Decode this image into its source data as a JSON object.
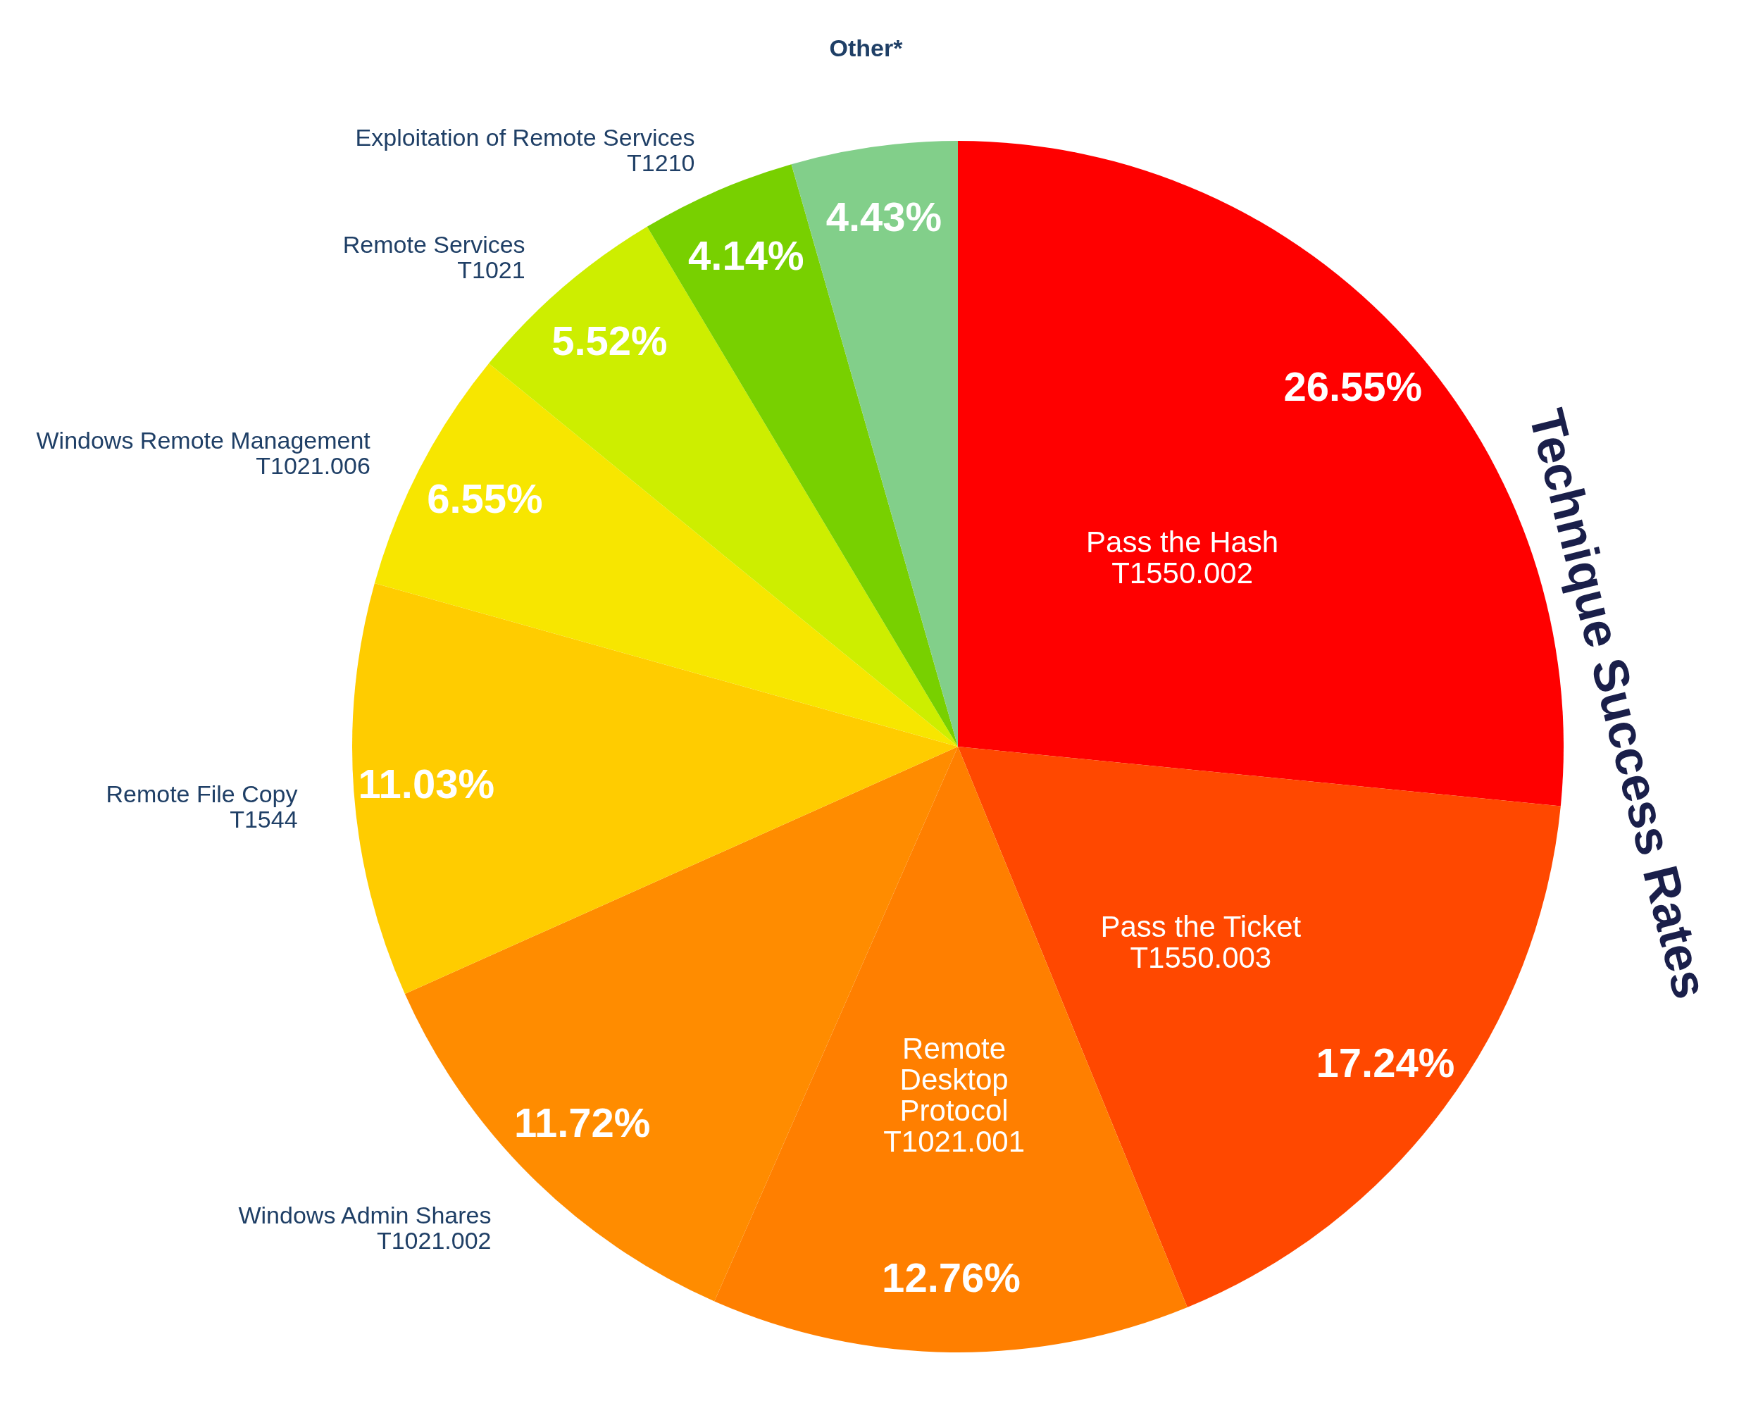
{
  "chart_data": {
    "type": "pie",
    "title": "Technique Success Rates",
    "categories": [
      "Pass the Hash\nT1550.002",
      "Pass the Ticket\nT1550.003",
      "Remote\nDesktop\nProtocol\nT1021.001",
      "Windows Admin Shares\nT1021.002",
      "Remote File Copy\nT1544",
      "Windows Remote Management\nT1021.006",
      "Remote Services\nT1021",
      "Exploitation of Remote Services\nT1210",
      "Other*"
    ],
    "values": [
      26.55,
      17.24,
      12.76,
      11.72,
      11.03,
      6.55,
      5.52,
      4.14,
      4.43
    ],
    "value_labels": [
      "26.55%",
      "17.24%",
      "12.76%",
      "11.72%",
      "11.03%",
      "6.55%",
      "5.52%",
      "4.14%",
      "4.43%"
    ],
    "colors": [
      "#ff0000",
      "#ff4800",
      "#ff7f00",
      "#ff8c00",
      "#ffcc00",
      "#f7e600",
      "#cdee00",
      "#78d000",
      "#82cf8a"
    ]
  }
}
